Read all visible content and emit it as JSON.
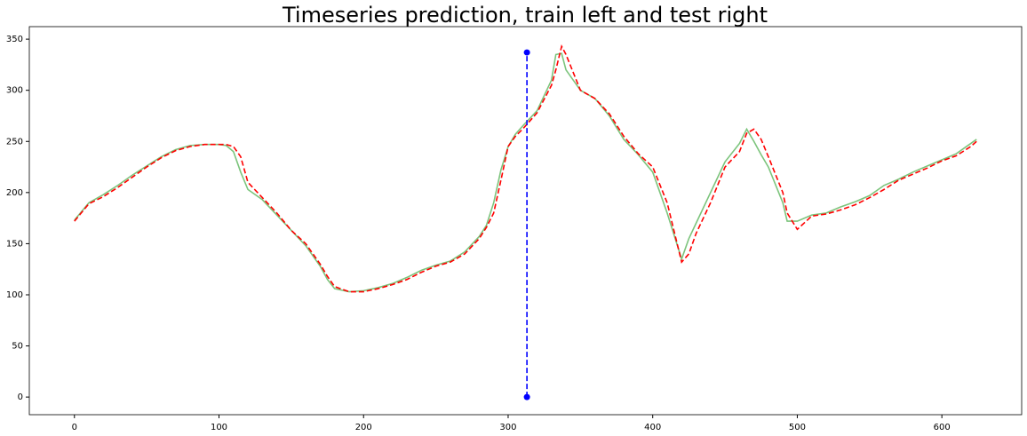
{
  "chart_data": {
    "type": "line",
    "title": "Timeseries prediction, train left and test right",
    "xlim": [
      -31.2,
      655.2
    ],
    "ylim": [
      -17.25,
      362.25
    ],
    "xticks": [
      0,
      100,
      200,
      300,
      400,
      500,
      600
    ],
    "yticks": [
      0,
      50,
      100,
      150,
      200,
      250,
      300,
      350
    ],
    "series": [
      {
        "color": "#7cc47c",
        "dash": false,
        "marker": false,
        "x": [
          0,
          10,
          20,
          30,
          40,
          50,
          60,
          70,
          80,
          90,
          100,
          105,
          110,
          115,
          120,
          130,
          140,
          150,
          160,
          170,
          175,
          180,
          190,
          200,
          210,
          220,
          230,
          240,
          250,
          260,
          270,
          280,
          285,
          290,
          295,
          300,
          305,
          310,
          320,
          330,
          333,
          337,
          340,
          350,
          360,
          370,
          380,
          390,
          400,
          410,
          420,
          425,
          430,
          440,
          450,
          460,
          465,
          470,
          475,
          480,
          490,
          493,
          500,
          510,
          520,
          530,
          540,
          550,
          560,
          570,
          580,
          590,
          600,
          610,
          620,
          624
        ],
        "values": [
          173,
          190,
          198,
          207,
          217,
          226,
          235,
          242,
          246,
          247,
          247,
          246,
          240,
          220,
          203,
          193,
          178,
          163,
          148,
          128,
          115,
          106,
          103,
          104,
          107,
          111,
          117,
          124,
          129,
          133,
          142,
          157,
          168,
          190,
          222,
          245,
          257,
          265,
          280,
          310,
          335,
          336,
          320,
          300,
          292,
          275,
          252,
          237,
          220,
          180,
          135,
          155,
          170,
          200,
          230,
          248,
          262,
          250,
          237,
          225,
          190,
          172,
          172,
          178,
          180,
          186,
          191,
          197,
          207,
          213,
          220,
          226,
          232,
          238,
          248,
          252
        ]
      },
      {
        "color": "#ff0000",
        "dash": true,
        "marker": false,
        "x": [
          0,
          10,
          20,
          30,
          40,
          50,
          60,
          70,
          80,
          90,
          100,
          105,
          110,
          115,
          120,
          130,
          140,
          150,
          160,
          170,
          175,
          180,
          190,
          200,
          210,
          220,
          230,
          240,
          250,
          260,
          270,
          280,
          285,
          290,
          295,
          300,
          305,
          310,
          320,
          330,
          333,
          337,
          340,
          350,
          360,
          370,
          380,
          390,
          400,
          410,
          420,
          425,
          430,
          440,
          450,
          460,
          465,
          470,
          475,
          480,
          490,
          493,
          500,
          510,
          520,
          530,
          540,
          550,
          560,
          570,
          580,
          590,
          600,
          610,
          620,
          624
        ],
        "values": [
          172,
          189,
          196,
          205,
          215,
          225,
          234,
          241,
          245,
          247,
          247,
          247,
          245,
          235,
          210,
          195,
          180,
          163,
          150,
          130,
          118,
          108,
          103,
          103,
          106,
          110,
          115,
          122,
          128,
          132,
          140,
          155,
          166,
          180,
          212,
          245,
          255,
          262,
          278,
          305,
          320,
          343,
          335,
          300,
          292,
          277,
          255,
          238,
          225,
          190,
          132,
          140,
          160,
          190,
          225,
          240,
          258,
          262,
          252,
          235,
          200,
          180,
          164,
          177,
          179,
          183,
          188,
          195,
          203,
          212,
          218,
          224,
          231,
          236,
          245,
          250
        ]
      },
      {
        "color": "#0000ff",
        "dash": true,
        "marker": true,
        "x": [
          313,
          313
        ],
        "values": [
          0,
          337
        ]
      }
    ]
  }
}
